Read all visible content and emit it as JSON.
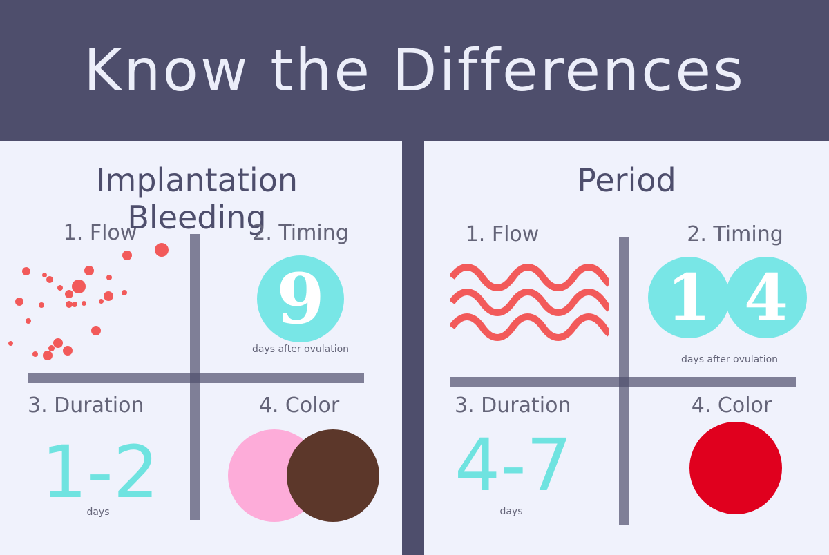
{
  "header": {
    "title": "Know the Differences"
  },
  "implantation": {
    "title": "Implantation Bleeding",
    "flow_label": "1. Flow",
    "timing_label": "2. Timing",
    "timing_value": "9",
    "timing_caption": "days after ovulation",
    "duration_label": "3. Duration",
    "duration_value": "1-2",
    "duration_caption": "days",
    "color_label": "4. Color",
    "colors": [
      "#fdacd9",
      "#5c372a"
    ]
  },
  "period": {
    "title": "Period",
    "flow_label": "1. Flow",
    "timing_label": "2. Timing",
    "timing_digits": [
      "1",
      "4"
    ],
    "timing_caption": "days after ovulation",
    "duration_label": "3. Duration",
    "duration_value": "4-7",
    "duration_caption": "days",
    "color_label": "4. Color",
    "colors": [
      "#e0001e"
    ]
  },
  "colors": {
    "header_bg": "#4e4e6c",
    "panel_bg": "#f0f2fc",
    "accent_teal": "#78e6e6",
    "flow_red": "#f25a5a"
  }
}
